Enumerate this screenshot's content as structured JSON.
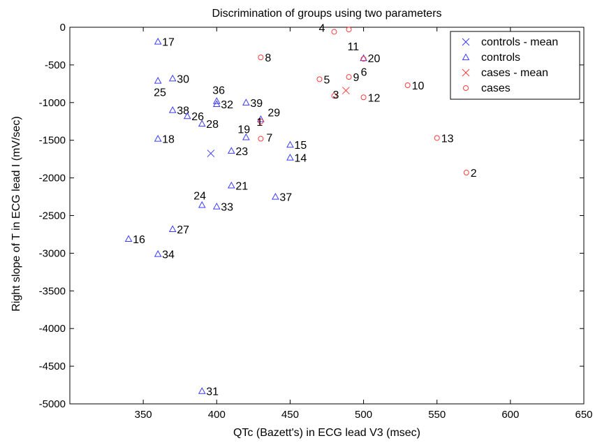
{
  "chart_data": {
    "type": "scatter",
    "title": "Discrimination of groups using two parameters",
    "xlabel": "QTc (Bazett's) in ECG lead V3 (msec)",
    "ylabel": "Right slope of T in ECG lead I (mV/sec)",
    "xlim": [
      300,
      650
    ],
    "ylim": [
      -5000,
      0
    ],
    "xticks": [
      350,
      400,
      450,
      500,
      550,
      600,
      650
    ],
    "yticks": [
      0,
      -500,
      -1000,
      -1500,
      -2000,
      -2500,
      -3000,
      -3500,
      -4000,
      -4500,
      -5000
    ],
    "grid": false,
    "legend_position": "top-right",
    "series": [
      {
        "name": "controls - mean",
        "marker": "x",
        "color": "#3b3bff",
        "points": [
          {
            "x": 396,
            "y": -1675,
            "label": ""
          }
        ]
      },
      {
        "name": "controls",
        "marker": "triangle",
        "color": "#3b3bff",
        "points": [
          {
            "x": 360,
            "y": -190,
            "label": "17"
          },
          {
            "x": 360,
            "y": -710,
            "label": "25"
          },
          {
            "x": 370,
            "y": -680,
            "label": "30"
          },
          {
            "x": 400,
            "y": -980,
            "label": "36"
          },
          {
            "x": 400,
            "y": -1020,
            "label": "32"
          },
          {
            "x": 420,
            "y": -1000,
            "label": "39"
          },
          {
            "x": 370,
            "y": -1100,
            "label": "38"
          },
          {
            "x": 380,
            "y": -1180,
            "label": "26"
          },
          {
            "x": 390,
            "y": -1280,
            "label": "28"
          },
          {
            "x": 430,
            "y": -1220,
            "label": "29"
          },
          {
            "x": 420,
            "y": -1460,
            "label": "19"
          },
          {
            "x": 360,
            "y": -1480,
            "label": "18"
          },
          {
            "x": 410,
            "y": -1640,
            "label": "23"
          },
          {
            "x": 450,
            "y": -1560,
            "label": "15"
          },
          {
            "x": 450,
            "y": -1730,
            "label": "14"
          },
          {
            "x": 410,
            "y": -2100,
            "label": "21"
          },
          {
            "x": 440,
            "y": -2250,
            "label": "37"
          },
          {
            "x": 390,
            "y": -2360,
            "label": "24"
          },
          {
            "x": 400,
            "y": -2380,
            "label": "33"
          },
          {
            "x": 370,
            "y": -2680,
            "label": "27"
          },
          {
            "x": 340,
            "y": -2810,
            "label": "16"
          },
          {
            "x": 360,
            "y": -3010,
            "label": "34"
          },
          {
            "x": 500,
            "y": -410,
            "label": "20"
          },
          {
            "x": 390,
            "y": -4830,
            "label": "31"
          }
        ]
      },
      {
        "name": "cases - mean",
        "marker": "x",
        "color": "#ff3b3b",
        "points": [
          {
            "x": 488,
            "y": -840,
            "label": ""
          }
        ]
      },
      {
        "name": "cases",
        "marker": "circle",
        "color": "#ff3b3b",
        "points": [
          {
            "x": 480,
            "y": -60,
            "label": "4"
          },
          {
            "x": 490,
            "y": -30,
            "label": "11"
          },
          {
            "x": 430,
            "y": -400,
            "label": "8"
          },
          {
            "x": 500,
            "y": -420,
            "label": "6"
          },
          {
            "x": 470,
            "y": -690,
            "label": "5"
          },
          {
            "x": 490,
            "y": -660,
            "label": "9"
          },
          {
            "x": 530,
            "y": -770,
            "label": "10"
          },
          {
            "x": 480,
            "y": -910,
            "label": "3"
          },
          {
            "x": 500,
            "y": -930,
            "label": "12"
          },
          {
            "x": 430,
            "y": -1250,
            "label": "1"
          },
          {
            "x": 430,
            "y": -1480,
            "label": "7"
          },
          {
            "x": 550,
            "y": -1470,
            "label": "13"
          },
          {
            "x": 570,
            "y": -1930,
            "label": "2"
          }
        ]
      }
    ]
  }
}
